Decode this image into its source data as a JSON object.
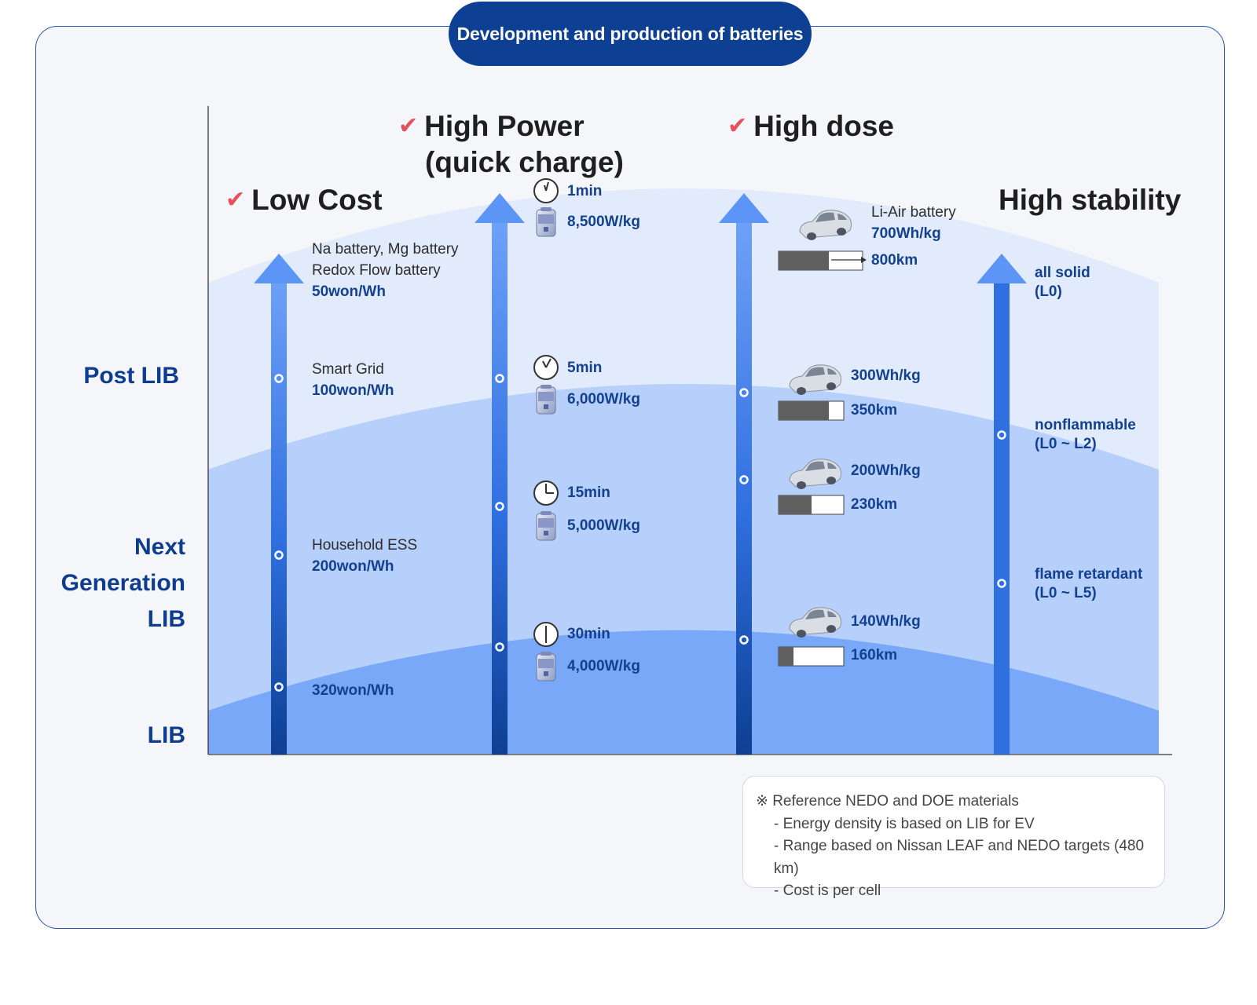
{
  "title": "Development and production of batteries",
  "levels": {
    "post_lib": "Post LIB",
    "next_gen": [
      "Next",
      "Generation",
      "LIB"
    ],
    "lib": "LIB"
  },
  "columns": {
    "low_cost": {
      "heading": "Low Cost",
      "items": [
        {
          "lines": [
            "Na battery, Mg battery",
            "Redox Flow battery"
          ],
          "value": "50won/Wh"
        },
        {
          "lines": [
            "Smart Grid"
          ],
          "value": "100won/Wh"
        },
        {
          "lines": [
            "Household ESS"
          ],
          "value": "200won/Wh"
        },
        {
          "lines": [],
          "value": "320won/Wh"
        }
      ]
    },
    "high_power": {
      "heading": [
        "High Power",
        "(quick charge)"
      ],
      "items": [
        {
          "time": "1min",
          "power": "8,500W/kg"
        },
        {
          "time": "5min",
          "power": "6,000W/kg"
        },
        {
          "time": "15min",
          "power": "5,000W/kg"
        },
        {
          "time": "30min",
          "power": "4,000W/kg"
        }
      ]
    },
    "high_dose": {
      "heading": "High dose",
      "items": [
        {
          "name": "Li-Air battery",
          "density": "700Wh/kg",
          "range": "800km",
          "fill": 0.6
        },
        {
          "density": "300Wh/kg",
          "range": "350km",
          "fill": 0.77
        },
        {
          "density": "200Wh/kg",
          "range": "230km",
          "fill": 0.5
        },
        {
          "density": "140Wh/kg",
          "range": "160km",
          "fill": 0.23
        }
      ]
    },
    "high_stability": {
      "heading": "High stability",
      "items": [
        {
          "label": "all solid",
          "level": "(L0)"
        },
        {
          "label": "nonflammable",
          "level": "(L0 ~ L2)"
        },
        {
          "label": "flame retardant",
          "level": "(L0 ~ L5)"
        }
      ]
    }
  },
  "notes": {
    "title": "※ Reference NEDO and DOE materials",
    "lines": [
      "- Energy density is based on LIB for EV",
      "- Range based on Nissan LEAF and NEDO targets (480 km)",
      "- Cost is per cell"
    ]
  },
  "colors": {
    "navy": "#0d3f92",
    "check": "#e8505b",
    "band_light": "#e2ebfb",
    "band_mid": "#b7cffb",
    "band_dark": "#79a8f8",
    "arrow_top": "#5c95f5",
    "arrow_bottom": "#0d3f92"
  }
}
